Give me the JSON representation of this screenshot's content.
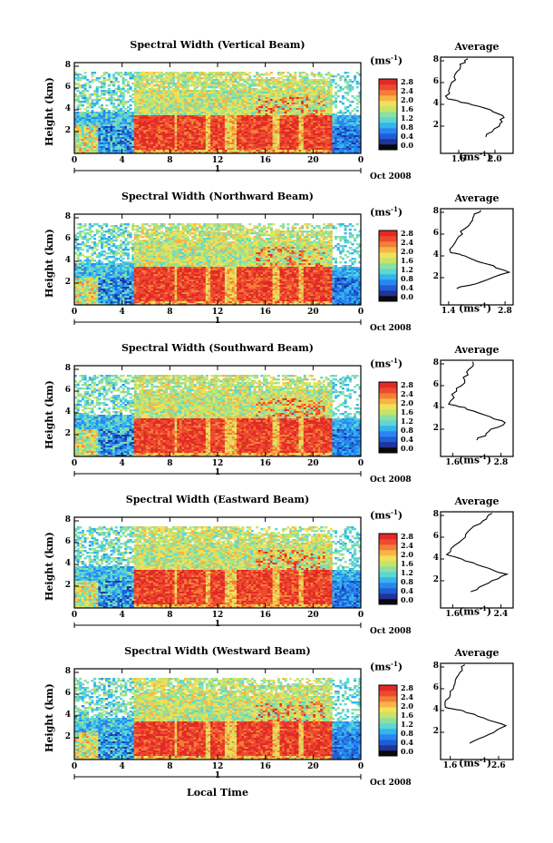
{
  "colorbar": {
    "unit": "(ms",
    "unit_exp": "-1",
    "unit_close": ")",
    "ticks": [
      "2.8",
      "2.4",
      "2.0",
      "1.6",
      "1.2",
      "0.8",
      "0.4",
      "0.0"
    ],
    "colors": [
      "#0a0a0a",
      "#223399",
      "#1e5ed6",
      "#2a86ef",
      "#33b5ee",
      "#5ed6d2",
      "#8ee0a0",
      "#c4e46a",
      "#f0e05a",
      "#f8b446",
      "#f37f36",
      "#ee4a30",
      "#e02a26"
    ]
  },
  "x_label": "Local Time",
  "avg_title": "Average",
  "avg_unit": "(ms",
  "avg_unit_exp": "-1",
  "avg_unit_close": ")",
  "panels": [
    {
      "title": "Spectral Width (Vertical Beam)",
      "ylabel": "Height (km)",
      "yticks": [
        "8",
        "6",
        "4",
        "2"
      ],
      "xticks": [
        "0",
        "4",
        "8",
        "12",
        "16",
        "20",
        "0"
      ],
      "day_tick": "1",
      "date": "Oct 2008",
      "avg_ticks": [
        "1.6",
        "2.0"
      ]
    },
    {
      "title": "Spectral Width (Northward Beam)",
      "ylabel": "Height (km)",
      "yticks": [
        "8",
        "6",
        "4",
        "2"
      ],
      "xticks": [
        "0",
        "4",
        "8",
        "12",
        "16",
        "20",
        "0"
      ],
      "day_tick": "1",
      "date": "Oct 2008",
      "avg_ticks": [
        "1.4",
        "2.8"
      ]
    },
    {
      "title": "Spectral Width (Southward Beam)",
      "ylabel": "Height (km)",
      "yticks": [
        "8",
        "6",
        "4",
        "2"
      ],
      "xticks": [
        "0",
        "4",
        "8",
        "12",
        "16",
        "20",
        "0"
      ],
      "day_tick": "1",
      "date": "Oct 2008",
      "avg_ticks": [
        "1.6",
        "2.8"
      ]
    },
    {
      "title": "Spectral Width (Eastward Beam)",
      "ylabel": "Height (km)",
      "yticks": [
        "8",
        "6",
        "4",
        "2"
      ],
      "xticks": [
        "0",
        "4",
        "8",
        "12",
        "16",
        "20",
        "0"
      ],
      "day_tick": "1",
      "date": "Oct 2008",
      "avg_ticks": [
        "1.6",
        "2.4"
      ]
    },
    {
      "title": "Spectral Width (Westward Beam)",
      "ylabel": "Height (km)",
      "yticks": [
        "8",
        "6",
        "4",
        "2"
      ],
      "xticks": [
        "0",
        "4",
        "8",
        "12",
        "16",
        "20",
        "0"
      ],
      "day_tick": "1",
      "date": "Oct 2008",
      "avg_ticks": [
        "1.6",
        "2.6"
      ]
    }
  ],
  "chart_data": {
    "type": "heatmap",
    "x_ticks": [
      "0",
      "4",
      "8",
      "12",
      "16",
      "20",
      "0"
    ],
    "y_ticks": [
      "8",
      "6",
      "4",
      "2"
    ],
    "x_axis_label": "Local Time",
    "y_axis_label": "Height (km)",
    "colorbar_unit": "ms-1",
    "colorbar_ticks": [
      0.0,
      0.4,
      0.8,
      1.2,
      1.6,
      2.0,
      2.4,
      2.8
    ],
    "panels": [
      {
        "title": "Spectral Width (Vertical Beam)",
        "avg_xlim": [
          1.4,
          2.2
        ],
        "avg_ticks": [
          1.6,
          2.0
        ],
        "average_profile": [
          {
            "h": 1,
            "v": 1.9
          },
          {
            "h": 2,
            "v": 2.05
          },
          {
            "h": 2.8,
            "v": 2.1
          },
          {
            "h": 3.5,
            "v": 1.95
          },
          {
            "h": 4.1,
            "v": 1.7
          },
          {
            "h": 4.5,
            "v": 1.48
          },
          {
            "h": 5.5,
            "v": 1.5
          },
          {
            "h": 6.5,
            "v": 1.55
          },
          {
            "h": 7.5,
            "v": 1.62
          },
          {
            "h": 8.2,
            "v": 1.7
          }
        ]
      },
      {
        "title": "Spectral Width (Northward Beam)",
        "avg_xlim": [
          1.2,
          3.0
        ],
        "avg_ticks": [
          1.4,
          2.8
        ],
        "average_profile": [
          {
            "h": 1,
            "v": 1.6
          },
          {
            "h": 1.6,
            "v": 2.2
          },
          {
            "h": 2.5,
            "v": 2.9
          },
          {
            "h": 3.3,
            "v": 2.3
          },
          {
            "h": 4.0,
            "v": 1.8
          },
          {
            "h": 4.3,
            "v": 1.45
          },
          {
            "h": 5.5,
            "v": 1.6
          },
          {
            "h": 6.5,
            "v": 1.8
          },
          {
            "h": 7.5,
            "v": 2.0
          },
          {
            "h": 8.2,
            "v": 2.2
          }
        ]
      },
      {
        "title": "Spectral Width (Southward Beam)",
        "avg_xlim": [
          1.3,
          3.1
        ],
        "avg_ticks": [
          1.6,
          2.8
        ],
        "average_profile": [
          {
            "h": 1,
            "v": 2.2
          },
          {
            "h": 1.8,
            "v": 2.5
          },
          {
            "h": 2.6,
            "v": 2.9
          },
          {
            "h": 3.3,
            "v": 2.4
          },
          {
            "h": 4.0,
            "v": 1.9
          },
          {
            "h": 4.3,
            "v": 1.5
          },
          {
            "h": 5.5,
            "v": 1.7
          },
          {
            "h": 6.5,
            "v": 1.9
          },
          {
            "h": 7.5,
            "v": 2.0
          },
          {
            "h": 8.2,
            "v": 2.1
          }
        ]
      },
      {
        "title": "Spectral Width (Eastward Beam)",
        "avg_xlim": [
          1.4,
          2.6
        ],
        "avg_ticks": [
          1.6,
          2.4
        ],
        "average_profile": [
          {
            "h": 1,
            "v": 1.9
          },
          {
            "h": 1.8,
            "v": 2.2
          },
          {
            "h": 2.6,
            "v": 2.5
          },
          {
            "h": 3.3,
            "v": 2.1
          },
          {
            "h": 4.0,
            "v": 1.75
          },
          {
            "h": 4.4,
            "v": 1.5
          },
          {
            "h": 5.5,
            "v": 1.7
          },
          {
            "h": 6.5,
            "v": 1.85
          },
          {
            "h": 7.5,
            "v": 2.1
          },
          {
            "h": 8.2,
            "v": 2.25
          }
        ]
      },
      {
        "title": "Spectral Width (Westward Beam)",
        "avg_xlim": [
          1.4,
          2.9
        ],
        "avg_ticks": [
          1.6,
          2.6
        ],
        "average_profile": [
          {
            "h": 1,
            "v": 2.0
          },
          {
            "h": 1.8,
            "v": 2.4
          },
          {
            "h": 2.6,
            "v": 2.75
          },
          {
            "h": 3.3,
            "v": 2.3
          },
          {
            "h": 4.0,
            "v": 1.85
          },
          {
            "h": 4.3,
            "v": 1.5
          },
          {
            "h": 5.5,
            "v": 1.6
          },
          {
            "h": 6.5,
            "v": 1.7
          },
          {
            "h": 7.5,
            "v": 1.8
          },
          {
            "h": 8.2,
            "v": 1.9
          }
        ]
      }
    ]
  }
}
